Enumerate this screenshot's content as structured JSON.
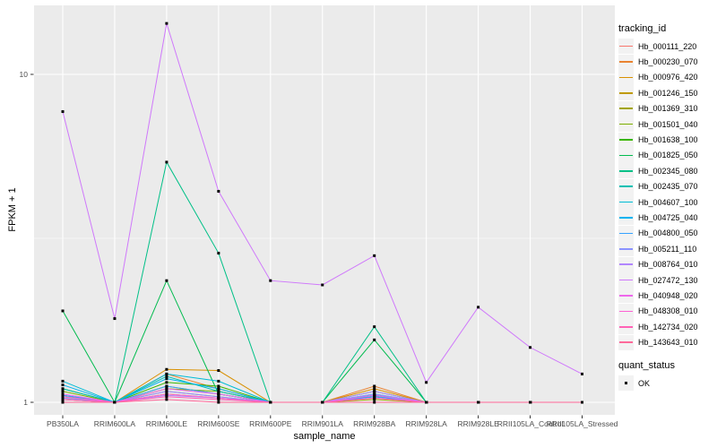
{
  "legend": {
    "tracking_id_title": "tracking_id",
    "quant_status_title": "quant_status",
    "quant_status_ok_label": "OK",
    "key_background": "#F2F2F2",
    "ok_marker": "black-square"
  },
  "panel": {
    "background": "#EBEBEB",
    "gridline_color": "#FFFFFF",
    "tick_color": "#333333",
    "tick_label_color": "#4D4D4D",
    "point_marker_color": "#000000"
  },
  "chart_data": {
    "type": "line",
    "title": "",
    "xlabel": "sample_name",
    "ylabel": "FPKM + 1",
    "y_scale": "log10",
    "ylim_log10": [
      -0.04,
      1.21
    ],
    "grid": "on",
    "legend_position": "right",
    "point_marker": "black-square (quant_status = OK at every point)",
    "y_ticks": [
      {
        "label": "10",
        "value": 10
      },
      {
        "label": "1",
        "value": 1
      }
    ],
    "y_minor_gridlines": [
      3.1623
    ],
    "categories": [
      "PB350LA",
      "RRIM600LA",
      "RRIM600LE",
      "RRIM600SE",
      "RRIM600PE",
      "RRIM901LA",
      "RRIM928BA",
      "RRIM928LA",
      "RRIM928LE",
      "RRII105LA_Control",
      "RRII105LA_Stressed"
    ],
    "series": [
      {
        "name": "Hb_000111_220",
        "color": "#F8766D",
        "values": [
          1.05,
          1,
          1.08,
          1.04,
          1,
          1,
          1.05,
          1,
          1,
          1,
          1
        ]
      },
      {
        "name": "Hb_000230_070",
        "color": "#EA8331",
        "values": [
          1.03,
          1,
          1.22,
          1.1,
          1,
          1,
          1.12,
          1,
          1,
          1,
          1
        ]
      },
      {
        "name": "Hb_000976_420",
        "color": "#D89000",
        "values": [
          1.02,
          1,
          1.26,
          1.25,
          1,
          1,
          1.1,
          1,
          1,
          1,
          1
        ]
      },
      {
        "name": "Hb_001246_150",
        "color": "#C09B00",
        "values": [
          1.04,
          1,
          1.12,
          1.06,
          1,
          1,
          1.04,
          1,
          1,
          1,
          1
        ]
      },
      {
        "name": "Hb_001369_310",
        "color": "#A3A500",
        "values": [
          1.02,
          1,
          1.06,
          1.03,
          1,
          1,
          1.02,
          1,
          1,
          1,
          1
        ]
      },
      {
        "name": "Hb_001501_040",
        "color": "#7CAE00",
        "values": [
          1.08,
          1,
          1.1,
          1.08,
          1,
          1,
          1.05,
          1,
          1,
          1,
          1
        ]
      },
      {
        "name": "Hb_001638_100",
        "color": "#39B600",
        "values": [
          1.1,
          1,
          1.15,
          1.12,
          1,
          1,
          1.08,
          1,
          1,
          1,
          1
        ]
      },
      {
        "name": "Hb_001825_050",
        "color": "#00BB4E",
        "values": [
          1.9,
          1,
          2.35,
          1.06,
          1,
          1,
          1.55,
          1,
          1,
          1,
          1
        ]
      },
      {
        "name": "Hb_002345_080",
        "color": "#00C087",
        "values": [
          1.05,
          1,
          5.4,
          2.85,
          1,
          1,
          1.7,
          1,
          1,
          1,
          1
        ]
      },
      {
        "name": "Hb_002435_070",
        "color": "#00C0B2",
        "values": [
          1.1,
          1,
          1.2,
          1.08,
          1,
          1,
          1.04,
          1,
          1,
          1,
          1
        ]
      },
      {
        "name": "Hb_004607_100",
        "color": "#00BCD6",
        "values": [
          1.16,
          1,
          1.22,
          1.16,
          1,
          1,
          1.06,
          1,
          1,
          1,
          1
        ]
      },
      {
        "name": "Hb_004725_040",
        "color": "#00B3F0",
        "values": [
          1.13,
          1,
          1.18,
          1.1,
          1,
          1,
          1.05,
          1,
          1,
          1,
          1
        ]
      },
      {
        "name": "Hb_004800_050",
        "color": "#35A2FF",
        "values": [
          1.05,
          1,
          1.12,
          1.06,
          1,
          1,
          1.04,
          1,
          1,
          1,
          1
        ]
      },
      {
        "name": "Hb_005211_110",
        "color": "#8B93FF",
        "values": [
          1.03,
          1,
          1.08,
          1.04,
          1,
          1,
          1.06,
          1,
          1,
          1,
          1
        ]
      },
      {
        "name": "Hb_008764_010",
        "color": "#B186FF",
        "values": [
          1.02,
          1,
          1.05,
          1.03,
          1,
          1,
          1.08,
          1,
          1,
          1,
          1
        ]
      },
      {
        "name": "Hb_027472_130",
        "color": "#CF78FB",
        "values": [
          7.7,
          1.8,
          14.3,
          4.4,
          2.35,
          2.28,
          2.8,
          1.15,
          1.95,
          1.47,
          1.22
        ]
      },
      {
        "name": "Hb_040948_020",
        "color": "#EF67EB",
        "values": [
          1.06,
          1,
          1.1,
          1.06,
          1,
          1,
          1.05,
          1,
          1,
          1,
          1
        ]
      },
      {
        "name": "Hb_048308_010",
        "color": "#FD61D3",
        "values": [
          1.04,
          1,
          1.06,
          1.03,
          1,
          1,
          1.03,
          1,
          1,
          1,
          1
        ]
      },
      {
        "name": "Hb_142734_020",
        "color": "#FF62B6",
        "values": [
          1.02,
          1,
          1.04,
          1.02,
          1,
          1,
          1.03,
          1,
          1,
          1,
          1
        ]
      },
      {
        "name": "Hb_143643_010",
        "color": "#FF6A9A",
        "values": [
          1,
          1,
          1.02,
          1,
          1,
          1,
          1,
          1,
          1,
          1,
          1
        ]
      }
    ]
  }
}
